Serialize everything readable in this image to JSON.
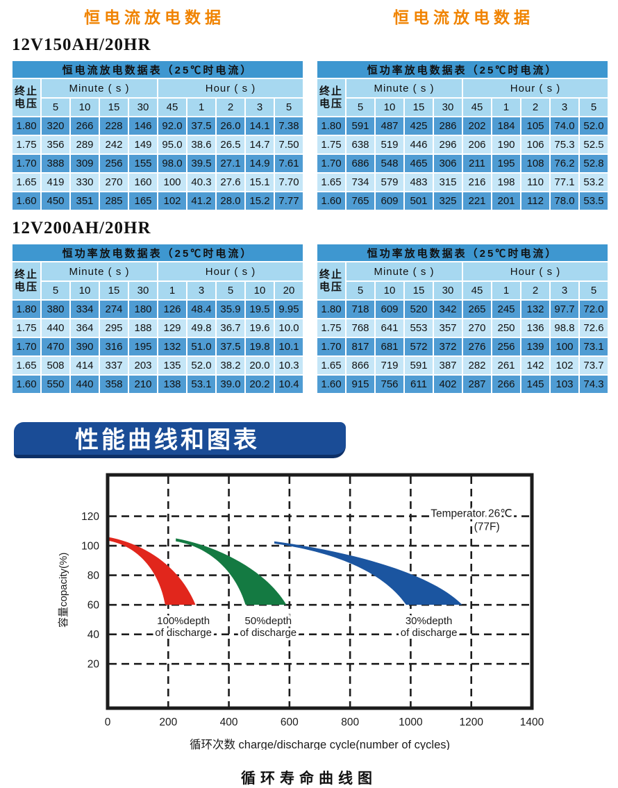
{
  "page": {
    "top_title_left": "恒电流放电数据",
    "top_title_right": "恒电流放电数据",
    "section1": "12V150AH/20HR",
    "section2": "12V200AH/20HR",
    "banner": "性能曲线和图表"
  },
  "colors": {
    "orange": "#f08300",
    "table_title_bg": "#3e97d0",
    "table_head_bg": "#a7d8f0",
    "row_dark": "#4f9cd3",
    "row_light": "#c5e6f7",
    "banner_bg": "#1a4c96",
    "banner_shadow": "#0d2f66",
    "curve_red": "#e1261c",
    "curve_green": "#147a42",
    "curve_blue": "#1b55a0"
  },
  "table_common": {
    "voltage_label_line1": "终止",
    "voltage_label_line2": "电压",
    "minute_group": "Minute ( s )",
    "hour_group": "Hour ( s )"
  },
  "tables": [
    {
      "title": "恒电流放电数据表（25℃时电流）",
      "minute_cols": [
        "5",
        "10",
        "15",
        "30"
      ],
      "hour_cols": [
        "45",
        "1",
        "2",
        "3",
        "5"
      ],
      "rows": [
        [
          "1.80",
          "320",
          "266",
          "228",
          "146",
          "92.0",
          "37.5",
          "26.0",
          "14.1",
          "7.38"
        ],
        [
          "1.75",
          "356",
          "289",
          "242",
          "149",
          "95.0",
          "38.6",
          "26.5",
          "14.7",
          "7.50"
        ],
        [
          "1.70",
          "388",
          "309",
          "256",
          "155",
          "98.0",
          "39.5",
          "27.1",
          "14.9",
          "7.61"
        ],
        [
          "1.65",
          "419",
          "330",
          "270",
          "160",
          "100",
          "40.3",
          "27.6",
          "15.1",
          "7.70"
        ],
        [
          "1.60",
          "450",
          "351",
          "285",
          "165",
          "102",
          "41.2",
          "28.0",
          "15.2",
          "7.77"
        ]
      ]
    },
    {
      "title": "恒功率放电数据表（25℃时电流）",
      "minute_cols": [
        "5",
        "10",
        "15",
        "30"
      ],
      "hour_cols": [
        "45",
        "1",
        "2",
        "3",
        "5"
      ],
      "rows": [
        [
          "1.80",
          "591",
          "487",
          "425",
          "286",
          "202",
          "184",
          "105",
          "74.0",
          "52.0"
        ],
        [
          "1.75",
          "638",
          "519",
          "446",
          "296",
          "206",
          "190",
          "106",
          "75.3",
          "52.5"
        ],
        [
          "1.70",
          "686",
          "548",
          "465",
          "306",
          "211",
          "195",
          "108",
          "76.2",
          "52.8"
        ],
        [
          "1.65",
          "734",
          "579",
          "483",
          "315",
          "216",
          "198",
          "110",
          "77.1",
          "53.2"
        ],
        [
          "1.60",
          "765",
          "609",
          "501",
          "325",
          "221",
          "201",
          "112",
          "78.0",
          "53.5"
        ]
      ]
    },
    {
      "title": "恒功率放电数据表（25℃时电流）",
      "minute_cols": [
        "5",
        "10",
        "15",
        "30"
      ],
      "hour_cols": [
        "1",
        "3",
        "5",
        "10",
        "20"
      ],
      "rows": [
        [
          "1.80",
          "380",
          "334",
          "274",
          "180",
          "126",
          "48.4",
          "35.9",
          "19.5",
          "9.95"
        ],
        [
          "1.75",
          "440",
          "364",
          "295",
          "188",
          "129",
          "49.8",
          "36.7",
          "19.6",
          "10.0"
        ],
        [
          "1.70",
          "470",
          "390",
          "316",
          "195",
          "132",
          "51.0",
          "37.5",
          "19.8",
          "10.1"
        ],
        [
          "1.65",
          "508",
          "414",
          "337",
          "203",
          "135",
          "52.0",
          "38.2",
          "20.0",
          "10.3"
        ],
        [
          "1.60",
          "550",
          "440",
          "358",
          "210",
          "138",
          "53.1",
          "39.0",
          "20.2",
          "10.4"
        ]
      ]
    },
    {
      "title": "恒功率放电数据表（25℃时电流）",
      "minute_cols": [
        "5",
        "10",
        "15",
        "30"
      ],
      "hour_cols": [
        "45",
        "1",
        "2",
        "3",
        "5"
      ],
      "rows": [
        [
          "1.80",
          "718",
          "609",
          "520",
          "342",
          "265",
          "245",
          "132",
          "97.7",
          "72.0"
        ],
        [
          "1.75",
          "768",
          "641",
          "553",
          "357",
          "270",
          "250",
          "136",
          "98.8",
          "72.6"
        ],
        [
          "1.70",
          "817",
          "681",
          "572",
          "372",
          "276",
          "256",
          "139",
          "100",
          "73.1"
        ],
        [
          "1.65",
          "866",
          "719",
          "591",
          "387",
          "282",
          "261",
          "142",
          "102",
          "73.7"
        ],
        [
          "1.60",
          "915",
          "756",
          "611",
          "402",
          "287",
          "266",
          "145",
          "103",
          "74.3"
        ]
      ]
    }
  ],
  "chart_data": {
    "type": "area",
    "title": "循环寿命曲线图",
    "xlabel": "循环次数  charge/discharge cycle(number of cycles)",
    "ylabel": "容量copacity(%)",
    "xlim": [
      0,
      1400
    ],
    "ylim": [
      -10,
      148
    ],
    "xticks": [
      0,
      200,
      400,
      600,
      800,
      1000,
      1200,
      1400
    ],
    "yticks": [
      20,
      40,
      60,
      80,
      100,
      120
    ],
    "grid": "dashed",
    "annotation": {
      "line1": "Temperator 26℃",
      "line2": "(77F)",
      "x": 1335,
      "y": 122
    },
    "series": [
      {
        "name": "100%depth of discharge",
        "color": "#e1261c",
        "upper": [
          [
            0,
            106
          ],
          [
            130,
            101
          ],
          [
            240,
            85
          ],
          [
            290,
            60
          ]
        ],
        "lower": [
          [
            190,
            60
          ],
          [
            170,
            83
          ],
          [
            100,
            100
          ],
          [
            0,
            103.5
          ]
        ]
      },
      {
        "name": "50%depth of discharge",
        "color": "#147a42",
        "upper": [
          [
            225,
            105
          ],
          [
            360,
            100
          ],
          [
            520,
            84
          ],
          [
            590,
            60
          ]
        ],
        "lower": [
          [
            455,
            60
          ],
          [
            420,
            84
          ],
          [
            330,
            99.5
          ],
          [
            225,
            103
          ]
        ]
      },
      {
        "name": "30%depth of discharge",
        "color": "#1b55a0",
        "upper": [
          [
            550,
            103
          ],
          [
            770,
            97
          ],
          [
            1060,
            83
          ],
          [
            1170,
            60
          ]
        ],
        "lower": [
          [
            985,
            60
          ],
          [
            900,
            85
          ],
          [
            720,
            96.5
          ],
          [
            550,
            101.5
          ]
        ]
      }
    ],
    "labels": [
      {
        "line1": "100%depth",
        "line2": "of discharge",
        "x": 250,
        "y": 47
      },
      {
        "line1": "50%depth",
        "line2": "of discharge",
        "x": 530,
        "y": 47
      },
      {
        "line1": "30%depth",
        "line2": "of discharge",
        "x": 1060,
        "y": 47
      }
    ]
  }
}
